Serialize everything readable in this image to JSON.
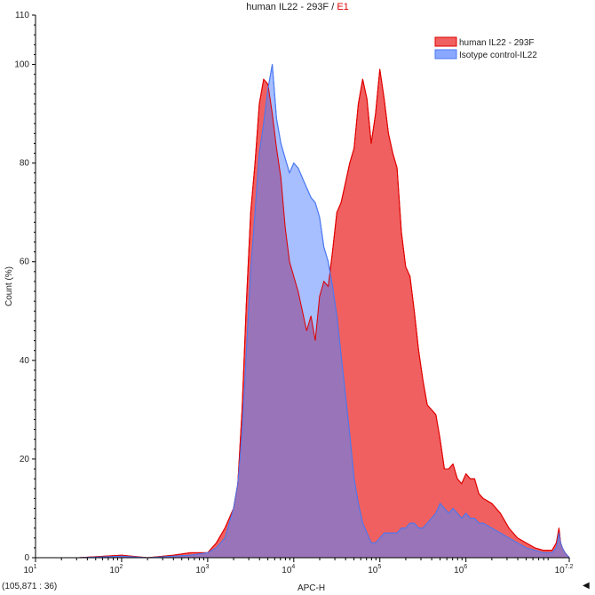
{
  "title": {
    "sample": "human IL22 - 293F",
    "separator": " / ",
    "gate": "E1",
    "gate_color": "#e00000"
  },
  "status": {
    "coordinate_readout": "(105,871 : 36)",
    "nav_icon": "triangle-left-icon"
  },
  "chart_data": {
    "type": "area",
    "title": "human IL22 - 293F / E1",
    "xlabel": "APC-H",
    "ylabel": "Count (%)",
    "x_scale": "log",
    "xlim": [
      1,
      7.2
    ],
    "ylim": [
      0,
      110
    ],
    "x_ticks": [
      {
        "pos": 1,
        "base": "10",
        "exp": "1"
      },
      {
        "pos": 2,
        "base": "10",
        "exp": "2"
      },
      {
        "pos": 3,
        "base": "10",
        "exp": "3"
      },
      {
        "pos": 4,
        "base": "10",
        "exp": "4"
      },
      {
        "pos": 5,
        "base": "10",
        "exp": "5"
      },
      {
        "pos": 6,
        "base": "10",
        "exp": "6"
      },
      {
        "pos": 7.2,
        "base": "10",
        "exp": "7.2"
      }
    ],
    "y_ticks": [
      "0",
      "20",
      "40",
      "60",
      "80",
      "100",
      "110"
    ],
    "y_tick_values": [
      0,
      20,
      40,
      60,
      80,
      100,
      110
    ],
    "legend": {
      "placement": "top-right"
    },
    "grid": false,
    "series": [
      {
        "name": "human IL22 - 293F",
        "fill": "#f06060",
        "stroke": "#e00000",
        "x": [
          1.0,
          1.5,
          2.0,
          2.3,
          2.6,
          2.8,
          3.0,
          3.05,
          3.1,
          3.2,
          3.3,
          3.35,
          3.4,
          3.45,
          3.5,
          3.55,
          3.6,
          3.65,
          3.7,
          3.75,
          3.8,
          3.85,
          3.9,
          3.95,
          4.0,
          4.05,
          4.1,
          4.15,
          4.2,
          4.25,
          4.3,
          4.35,
          4.4,
          4.45,
          4.5,
          4.55,
          4.6,
          4.65,
          4.7,
          4.75,
          4.8,
          4.85,
          4.9,
          4.95,
          5.0,
          5.05,
          5.1,
          5.15,
          5.2,
          5.25,
          5.3,
          5.35,
          5.4,
          5.45,
          5.5,
          5.55,
          5.6,
          5.65,
          5.7,
          5.75,
          5.8,
          5.85,
          5.9,
          5.95,
          6.0,
          6.05,
          6.1,
          6.15,
          6.2,
          6.3,
          6.4,
          6.5,
          6.6,
          6.7,
          6.8,
          6.9,
          7.0,
          7.05,
          7.08,
          7.1,
          7.12,
          7.15,
          7.2
        ],
        "y": [
          0,
          0,
          0.5,
          0,
          0.5,
          1,
          1,
          2,
          3,
          6,
          10,
          15,
          30,
          52,
          70,
          80,
          92,
          97,
          96,
          90,
          83,
          77,
          67,
          60,
          57,
          54,
          50,
          46,
          49,
          44,
          53,
          56,
          55,
          62,
          70,
          72,
          76,
          80,
          83,
          92,
          97,
          93,
          84,
          90,
          99,
          93,
          86,
          82,
          79,
          66,
          59,
          57,
          50,
          42,
          36,
          31,
          30,
          29,
          24,
          18,
          18,
          19,
          16,
          15,
          17,
          16,
          16,
          13,
          12,
          11,
          9,
          6,
          4,
          3,
          2,
          1.5,
          1.5,
          3,
          6,
          3,
          2,
          1,
          0
        ]
      },
      {
        "name": "Isotype control-IL22",
        "fill": "#8aa8ff",
        "stroke": "#4a78f0",
        "x": [
          1.0,
          1.5,
          2.0,
          2.3,
          2.6,
          2.8,
          3.0,
          3.1,
          3.2,
          3.3,
          3.35,
          3.4,
          3.45,
          3.5,
          3.55,
          3.6,
          3.65,
          3.7,
          3.75,
          3.8,
          3.85,
          3.9,
          3.95,
          4.0,
          4.05,
          4.1,
          4.15,
          4.2,
          4.25,
          4.3,
          4.35,
          4.4,
          4.45,
          4.5,
          4.55,
          4.6,
          4.65,
          4.7,
          4.75,
          4.8,
          4.85,
          4.9,
          4.95,
          5.0,
          5.05,
          5.1,
          5.15,
          5.2,
          5.25,
          5.3,
          5.35,
          5.4,
          5.45,
          5.5,
          5.55,
          5.6,
          5.65,
          5.7,
          5.75,
          5.8,
          5.85,
          5.9,
          5.95,
          6.0,
          6.05,
          6.1,
          6.15,
          6.2,
          6.3,
          6.4,
          6.5,
          6.6,
          6.7,
          6.8,
          6.9,
          7.0,
          7.05,
          7.08,
          7.1,
          7.12,
          7.15,
          7.2
        ],
        "y": [
          0,
          0,
          0.3,
          0,
          0.3,
          0.5,
          1,
          2,
          4,
          10,
          15,
          25,
          42,
          58,
          70,
          82,
          88,
          95,
          100,
          89,
          84,
          81,
          78,
          80,
          79,
          77,
          75,
          73,
          72,
          69,
          63,
          60,
          55,
          49,
          41,
          33,
          25,
          16,
          11,
          7,
          5,
          3,
          3,
          4,
          5,
          5,
          5,
          5,
          6,
          6,
          7,
          7,
          6,
          6,
          7,
          8,
          9,
          11,
          10,
          9,
          10,
          9,
          8,
          9,
          8,
          8,
          7,
          7,
          6,
          5,
          4,
          3,
          2,
          1.5,
          1,
          1,
          2,
          5,
          3,
          2,
          1,
          0
        ]
      }
    ]
  }
}
